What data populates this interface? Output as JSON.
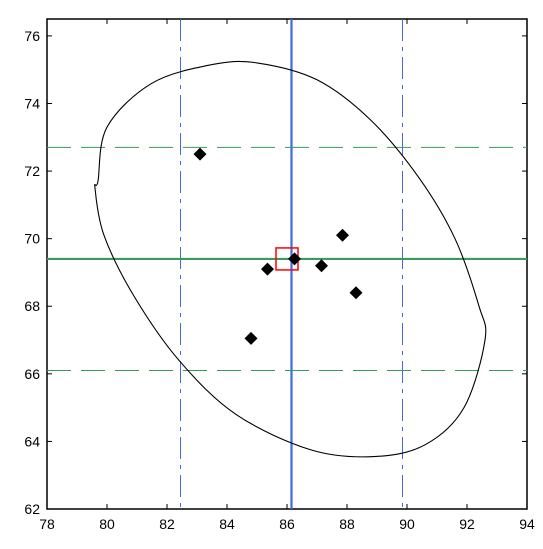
{
  "chart_data": {
    "type": "scatter",
    "title": "",
    "xlabel": "",
    "ylabel": "",
    "xlim": [
      78,
      94
    ],
    "ylim": [
      62,
      76.5
    ],
    "x_ticks": [
      78,
      80,
      82,
      84,
      86,
      88,
      90,
      92,
      94
    ],
    "y_ticks": [
      62,
      64,
      66,
      68,
      70,
      72,
      74,
      76
    ],
    "x_tick_labels": [
      "78",
      "80",
      "82",
      "84",
      "86",
      "88",
      "90",
      "92",
      "94"
    ],
    "y_tick_labels": [
      "62",
      "64",
      "66",
      "68",
      "70",
      "72",
      "74",
      "76"
    ],
    "grid": false,
    "legend": "none",
    "points": [
      {
        "x": 83.1,
        "y": 72.5
      },
      {
        "x": 84.8,
        "y": 67.05
      },
      {
        "x": 85.35,
        "y": 69.1
      },
      {
        "x": 86.25,
        "y": 69.4
      },
      {
        "x": 87.15,
        "y": 69.2
      },
      {
        "x": 87.85,
        "y": 70.1
      },
      {
        "x": 88.3,
        "y": 68.4
      }
    ],
    "mean_point": {
      "x": 86.0,
      "y": 69.4
    },
    "vertical_reference": {
      "mean": 86.15,
      "lower": 82.45,
      "upper": 89.85
    },
    "horizontal_reference": {
      "mean": 69.4,
      "lower": 66.1,
      "upper": 72.7
    },
    "identity_line": true,
    "ellipse": [
      [
        79.7,
        71.7
      ],
      [
        80.0,
        73.3
      ],
      [
        81.5,
        74.6
      ],
      [
        83.5,
        75.15
      ],
      [
        85.0,
        75.2
      ],
      [
        87.0,
        74.7
      ],
      [
        88.8,
        73.5
      ],
      [
        90.4,
        71.8
      ],
      [
        91.6,
        70.0
      ],
      [
        92.4,
        68.0
      ],
      [
        92.6,
        67.0
      ],
      [
        91.9,
        65.0
      ],
      [
        90.6,
        63.9
      ],
      [
        88.9,
        63.55
      ],
      [
        86.8,
        63.75
      ],
      [
        84.3,
        64.8
      ],
      [
        82.4,
        66.4
      ],
      [
        80.9,
        68.3
      ],
      [
        79.9,
        70.1
      ],
      [
        79.6,
        71.5
      ]
    ],
    "colors": {
      "points": "#000000",
      "ellipse": "#000000",
      "vertical_line": "#4169e1",
      "horizontal_line": "#3a9a5b",
      "identity_line": "#ff0000",
      "mean_box": "#ff0000"
    }
  }
}
